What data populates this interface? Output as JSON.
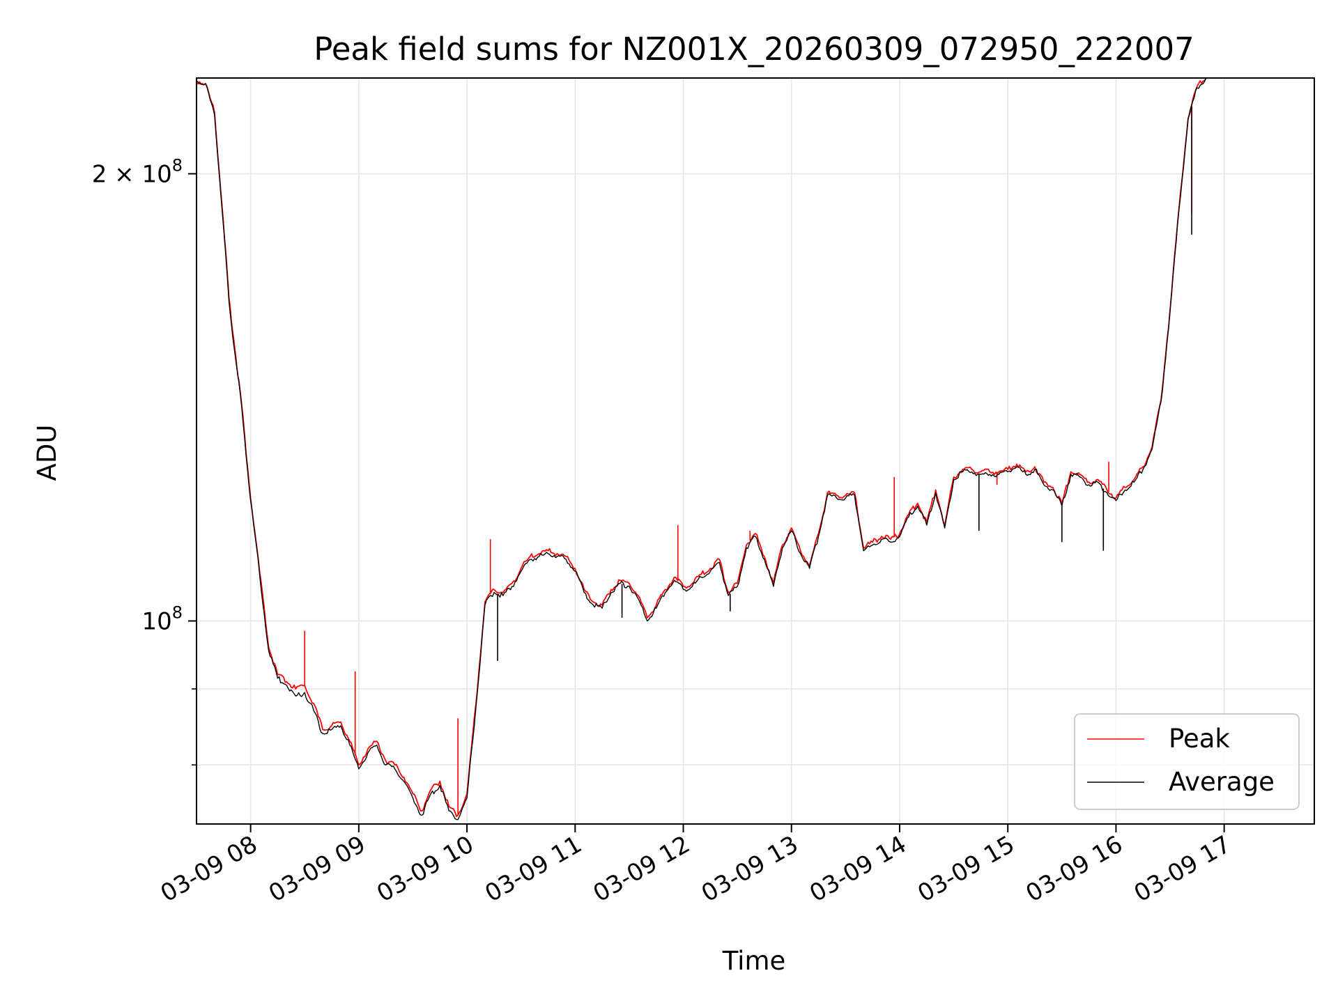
{
  "chart_data": {
    "type": "line",
    "title": "Peak field sums for NZ001X_20260309_072950_222007",
    "xlabel": "Time",
    "ylabel": "ADU",
    "y_scale": "log",
    "xlim": [
      "03-09 07:30",
      "03-09 17:50"
    ],
    "ylim": [
      73000000,
      232000000
    ],
    "grid": true,
    "legend_position": "lower-right",
    "x_ticks": [
      "03-09 08",
      "03-09 09",
      "03-09 10",
      "03-09 11",
      "03-09 12",
      "03-09 13",
      "03-09 14",
      "03-09 15",
      "03-09 16",
      "03-09 17"
    ],
    "y_ticks": [
      {
        "value": 200000000,
        "mantissa": "2",
        "exponent": "8"
      },
      {
        "value": 100000000,
        "mantissa": "",
        "exponent": "8"
      }
    ],
    "y_minor_ticks": [
      80000000,
      90000000
    ],
    "series": [
      {
        "name": "Peak",
        "color": "#ff0000",
        "points": [
          [
            "07:30",
            231000000
          ],
          [
            "07:35",
            230000000
          ],
          [
            "07:40",
            220000000
          ],
          [
            "07:45",
            185000000
          ],
          [
            "07:48",
            165000000
          ],
          [
            "07:52",
            150000000
          ],
          [
            "07:55",
            140000000
          ],
          [
            "08:00",
            121000000
          ],
          [
            "08:05",
            108000000
          ],
          [
            "08:10",
            96000000
          ],
          [
            "08:15",
            92000000
          ],
          [
            "08:20",
            91000000
          ],
          [
            "08:25",
            90000000
          ],
          [
            "08:30",
            90500000
          ],
          [
            "08:35",
            88000000
          ],
          [
            "08:40",
            84500000
          ],
          [
            "08:45",
            85000000
          ],
          [
            "08:50",
            85500000
          ],
          [
            "08:55",
            83000000
          ],
          [
            "09:00",
            80000000
          ],
          [
            "09:05",
            82000000
          ],
          [
            "09:10",
            83000000
          ],
          [
            "09:15",
            80500000
          ],
          [
            "09:20",
            80000000
          ],
          [
            "09:25",
            78500000
          ],
          [
            "09:30",
            76500000
          ],
          [
            "09:35",
            74500000
          ],
          [
            "09:40",
            77000000
          ],
          [
            "09:45",
            78000000
          ],
          [
            "09:50",
            75000000
          ],
          [
            "09:55",
            74000000
          ],
          [
            "10:00",
            76500000
          ],
          [
            "10:05",
            88000000
          ],
          [
            "10:10",
            103000000
          ],
          [
            "10:15",
            105000000
          ],
          [
            "10:20",
            104500000
          ],
          [
            "10:25",
            106000000
          ],
          [
            "10:30",
            108500000
          ],
          [
            "10:35",
            110500000
          ],
          [
            "10:40",
            111000000
          ],
          [
            "10:45",
            111500000
          ],
          [
            "10:50",
            111000000
          ],
          [
            "10:55",
            110500000
          ],
          [
            "11:00",
            108500000
          ],
          [
            "11:05",
            105000000
          ],
          [
            "11:10",
            103000000
          ],
          [
            "11:15",
            102500000
          ],
          [
            "11:20",
            105000000
          ],
          [
            "11:25",
            106500000
          ],
          [
            "11:30",
            106000000
          ],
          [
            "11:35",
            104000000
          ],
          [
            "11:40",
            100500000
          ],
          [
            "11:45",
            102500000
          ],
          [
            "11:50",
            105000000
          ],
          [
            "11:55",
            107000000
          ],
          [
            "12:00",
            105500000
          ],
          [
            "12:05",
            106000000
          ],
          [
            "12:10",
            107500000
          ],
          [
            "12:15",
            108500000
          ],
          [
            "12:20",
            110000000
          ],
          [
            "12:25",
            104500000
          ],
          [
            "12:30",
            106000000
          ],
          [
            "12:35",
            112500000
          ],
          [
            "12:40",
            114500000
          ],
          [
            "12:45",
            110500000
          ],
          [
            "12:50",
            106000000
          ],
          [
            "12:55",
            112500000
          ],
          [
            "13:00",
            115500000
          ],
          [
            "13:05",
            111500000
          ],
          [
            "13:10",
            109000000
          ],
          [
            "13:15",
            114500000
          ],
          [
            "13:20",
            122000000
          ],
          [
            "13:25",
            121500000
          ],
          [
            "13:30",
            121500000
          ],
          [
            "13:35",
            122000000
          ],
          [
            "13:40",
            112000000
          ],
          [
            "13:45",
            113000000
          ],
          [
            "13:50",
            114000000
          ],
          [
            "13:55",
            113500000
          ],
          [
            "14:00",
            114500000
          ],
          [
            "14:05",
            118000000
          ],
          [
            "14:10",
            120000000
          ],
          [
            "14:15",
            116500000
          ],
          [
            "14:20",
            122500000
          ],
          [
            "14:25",
            116000000
          ],
          [
            "14:30",
            125000000
          ],
          [
            "14:35",
            126500000
          ],
          [
            "14:40",
            126500000
          ],
          [
            "14:45",
            126000000
          ],
          [
            "14:50",
            126000000
          ],
          [
            "14:55",
            126000000
          ],
          [
            "15:00",
            126500000
          ],
          [
            "15:05",
            127500000
          ],
          [
            "15:10",
            126000000
          ],
          [
            "15:15",
            127000000
          ],
          [
            "15:20",
            124000000
          ],
          [
            "15:25",
            123000000
          ],
          [
            "15:30",
            120000000
          ],
          [
            "15:35",
            126000000
          ],
          [
            "15:40",
            125500000
          ],
          [
            "15:45",
            124000000
          ],
          [
            "15:50",
            124500000
          ],
          [
            "15:55",
            122500000
          ],
          [
            "16:00",
            121000000
          ],
          [
            "16:05",
            123000000
          ],
          [
            "16:10",
            124500000
          ],
          [
            "16:15",
            127000000
          ],
          [
            "16:20",
            131000000
          ],
          [
            "16:25",
            141000000
          ],
          [
            "16:30",
            162000000
          ],
          [
            "16:35",
            190000000
          ],
          [
            "16:40",
            218000000
          ],
          [
            "16:45",
            229000000
          ],
          [
            "16:50",
            232000000
          ]
        ],
        "spikes": [
          [
            "08:30",
            98500000
          ],
          [
            "08:58",
            92500000
          ],
          [
            "09:55",
            86000000
          ],
          [
            "10:13",
            113500000
          ],
          [
            "11:57",
            116000000
          ],
          [
            "12:37",
            115000000
          ],
          [
            "13:57",
            125000000
          ],
          [
            "14:54",
            123500000
          ],
          [
            "15:56",
            128000000
          ],
          [
            "16:42",
            188000000
          ]
        ]
      },
      {
        "name": "Average",
        "color": "#000000",
        "points": [
          [
            "07:30",
            231000000
          ],
          [
            "07:35",
            230000000
          ],
          [
            "07:40",
            219000000
          ],
          [
            "07:45",
            184000000
          ],
          [
            "07:48",
            164000000
          ],
          [
            "07:52",
            149000000
          ],
          [
            "07:55",
            139500000
          ],
          [
            "08:00",
            120500000
          ],
          [
            "08:05",
            107500000
          ],
          [
            "08:10",
            95500000
          ],
          [
            "08:15",
            91500000
          ],
          [
            "08:20",
            90500000
          ],
          [
            "08:25",
            89000000
          ],
          [
            "08:30",
            89500000
          ],
          [
            "08:35",
            87000000
          ],
          [
            "08:40",
            84000000
          ],
          [
            "08:45",
            84500000
          ],
          [
            "08:50",
            85000000
          ],
          [
            "08:55",
            82500000
          ],
          [
            "09:00",
            79500000
          ],
          [
            "09:05",
            81500000
          ],
          [
            "09:10",
            82500000
          ],
          [
            "09:15",
            80000000
          ],
          [
            "09:20",
            79500000
          ],
          [
            "09:25",
            78000000
          ],
          [
            "09:30",
            76000000
          ],
          [
            "09:35",
            74000000
          ],
          [
            "09:40",
            76500000
          ],
          [
            "09:45",
            77500000
          ],
          [
            "09:50",
            74500000
          ],
          [
            "09:55",
            73500000
          ],
          [
            "10:00",
            76000000
          ],
          [
            "10:05",
            87500000
          ],
          [
            "10:10",
            102500000
          ],
          [
            "10:15",
            104500000
          ],
          [
            "10:20",
            104000000
          ],
          [
            "10:25",
            105500000
          ],
          [
            "10:30",
            108000000
          ],
          [
            "10:35",
            110000000
          ],
          [
            "10:40",
            110500000
          ],
          [
            "10:45",
            111000000
          ],
          [
            "10:50",
            110500000
          ],
          [
            "10:55",
            110000000
          ],
          [
            "11:00",
            108000000
          ],
          [
            "11:05",
            104500000
          ],
          [
            "11:10",
            102500000
          ],
          [
            "11:15",
            102000000
          ],
          [
            "11:20",
            104500000
          ],
          [
            "11:25",
            106000000
          ],
          [
            "11:30",
            105500000
          ],
          [
            "11:35",
            103500000
          ],
          [
            "11:40",
            100000000
          ],
          [
            "11:45",
            102000000
          ],
          [
            "11:50",
            104500000
          ],
          [
            "11:55",
            106500000
          ],
          [
            "12:00",
            105000000
          ],
          [
            "12:05",
            105500000
          ],
          [
            "12:10",
            107000000
          ],
          [
            "12:15",
            108000000
          ],
          [
            "12:20",
            109500000
          ],
          [
            "12:25",
            104000000
          ],
          [
            "12:30",
            105500000
          ],
          [
            "12:35",
            112000000
          ],
          [
            "12:40",
            114000000
          ],
          [
            "12:45",
            110000000
          ],
          [
            "12:50",
            105500000
          ],
          [
            "12:55",
            112000000
          ],
          [
            "13:00",
            115000000
          ],
          [
            "13:05",
            111000000
          ],
          [
            "13:10",
            108500000
          ],
          [
            "13:15",
            114000000
          ],
          [
            "13:20",
            121500000
          ],
          [
            "13:25",
            121000000
          ],
          [
            "13:30",
            121000000
          ],
          [
            "13:35",
            121500000
          ],
          [
            "13:40",
            111500000
          ],
          [
            "13:45",
            112500000
          ],
          [
            "13:50",
            113500000
          ],
          [
            "13:55",
            113000000
          ],
          [
            "14:00",
            114000000
          ],
          [
            "14:05",
            117500000
          ],
          [
            "14:10",
            119500000
          ],
          [
            "14:15",
            116000000
          ],
          [
            "14:20",
            122000000
          ],
          [
            "14:25",
            115500000
          ],
          [
            "14:30",
            124500000
          ],
          [
            "14:35",
            126000000
          ],
          [
            "14:40",
            126000000
          ],
          [
            "14:45",
            125500000
          ],
          [
            "14:50",
            125500000
          ],
          [
            "14:55",
            125500000
          ],
          [
            "15:00",
            126000000
          ],
          [
            "15:05",
            127000000
          ],
          [
            "15:10",
            125500000
          ],
          [
            "15:15",
            126500000
          ],
          [
            "15:20",
            123500000
          ],
          [
            "15:25",
            122500000
          ],
          [
            "15:30",
            119500000
          ],
          [
            "15:35",
            125500000
          ],
          [
            "15:40",
            125000000
          ],
          [
            "15:45",
            123500000
          ],
          [
            "15:50",
            124000000
          ],
          [
            "15:55",
            122000000
          ],
          [
            "16:00",
            120500000
          ],
          [
            "16:05",
            122500000
          ],
          [
            "16:10",
            124000000
          ],
          [
            "16:15",
            126500000
          ],
          [
            "16:20",
            130500000
          ],
          [
            "16:25",
            140500000
          ],
          [
            "16:30",
            161500000
          ],
          [
            "16:35",
            189500000
          ],
          [
            "16:40",
            217500000
          ],
          [
            "16:45",
            228500000
          ],
          [
            "16:50",
            232000000
          ]
        ],
        "spikes": [
          [
            "10:17",
            94000000
          ],
          [
            "11:26",
            100500000
          ],
          [
            "12:26",
            101500000
          ],
          [
            "14:44",
            115000000
          ],
          [
            "15:30",
            113000000
          ],
          [
            "15:53",
            111500000
          ],
          [
            "16:42",
            182000000
          ]
        ]
      }
    ]
  }
}
